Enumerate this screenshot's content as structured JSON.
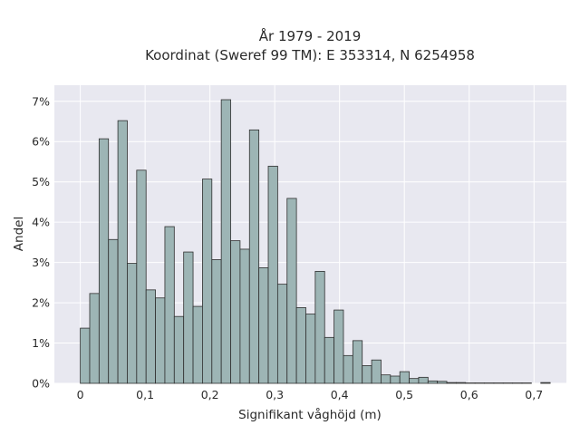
{
  "chart_data": {
    "type": "bar",
    "subtype": "histogram",
    "title_lines": [
      "År 1979 - 2019",
      "Koordinat (Sweref 99 TM): E 353314, N 6254958"
    ],
    "xlabel": "Signifikant våghöjd (m)",
    "ylabel": "Andel",
    "xlim": [
      -0.04,
      0.75
    ],
    "ylim": [
      0,
      7.4
    ],
    "x_ticks": [
      {
        "value": 0,
        "label": "0"
      },
      {
        "value": 0.1,
        "label": "0,1"
      },
      {
        "value": 0.2,
        "label": "0,2"
      },
      {
        "value": 0.3,
        "label": "0,3"
      },
      {
        "value": 0.4,
        "label": "0,4"
      },
      {
        "value": 0.5,
        "label": "0,5"
      },
      {
        "value": 0.6,
        "label": "0,6"
      },
      {
        "value": 0.7,
        "label": "0,7"
      }
    ],
    "y_ticks": [
      {
        "value": 0,
        "label": "0%"
      },
      {
        "value": 1,
        "label": "1%"
      },
      {
        "value": 2,
        "label": "2%"
      },
      {
        "value": 3,
        "label": "3%"
      },
      {
        "value": 4,
        "label": "4%"
      },
      {
        "value": 5,
        "label": "5%"
      },
      {
        "value": 6,
        "label": "6%"
      },
      {
        "value": 7,
        "label": "7%"
      }
    ],
    "bin_width": 0.0145,
    "bins_start": [
      0.0,
      0.0145,
      0.029,
      0.0435,
      0.058,
      0.0725,
      0.087,
      0.1015,
      0.116,
      0.1305,
      0.145,
      0.1595,
      0.174,
      0.1885,
      0.203,
      0.2175,
      0.232,
      0.2465,
      0.261,
      0.2755,
      0.29,
      0.3045,
      0.319,
      0.3335,
      0.348,
      0.3625,
      0.377,
      0.3915,
      0.406,
      0.4205,
      0.435,
      0.4495,
      0.464,
      0.4785,
      0.493,
      0.5075,
      0.522,
      0.5365,
      0.551,
      0.5655,
      0.58,
      0.5945,
      0.609,
      0.6235,
      0.638,
      0.6525,
      0.667,
      0.6815,
      0.696,
      0.7105
    ],
    "values": [
      1.37,
      2.23,
      6.07,
      3.57,
      6.52,
      2.98,
      5.29,
      2.32,
      2.12,
      3.89,
      1.66,
      3.26,
      1.91,
      5.07,
      3.07,
      7.04,
      3.54,
      3.33,
      6.29,
      2.87,
      5.39,
      2.46,
      4.59,
      1.88,
      1.72,
      2.78,
      1.14,
      1.82,
      0.69,
      1.06,
      0.44,
      0.58,
      0.21,
      0.18,
      0.29,
      0.12,
      0.15,
      0.06,
      0.05,
      0.02,
      0.02,
      0.01,
      0.01,
      0.01,
      0.01,
      0.01,
      0.01,
      0.01,
      0.0,
      0.02
    ],
    "bar_color": "#9db5b5",
    "bar_edge_color": "#2f2f2f",
    "plot_background": "#e8e8f0",
    "grid": true,
    "grid_color": "#ffffff"
  }
}
